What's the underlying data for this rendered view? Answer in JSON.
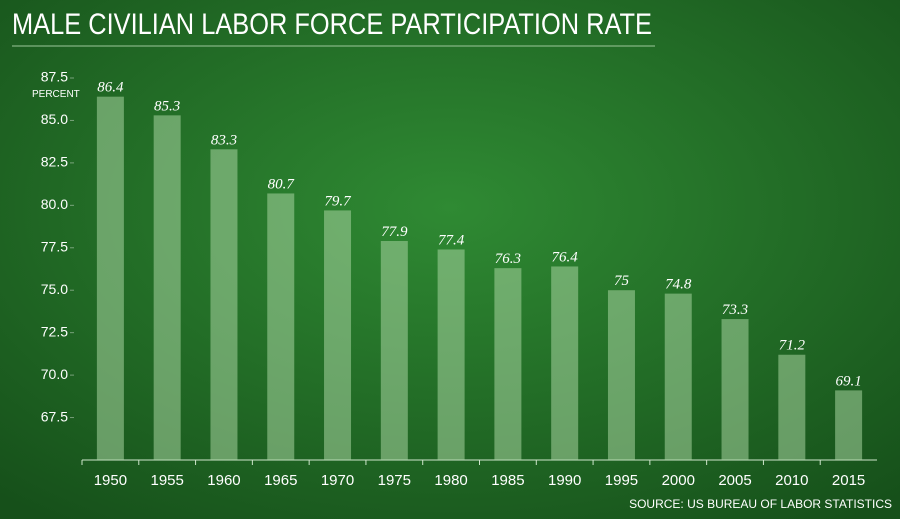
{
  "chart_data": {
    "type": "bar",
    "title": "MALE CIVILIAN LABOR FORCE PARTICIPATION RATE",
    "y_label": "PERCENT",
    "source": "SOURCE: US BUREAU OF LABOR STATISTICS",
    "categories": [
      "1950",
      "1955",
      "1960",
      "1965",
      "1970",
      "1975",
      "1980",
      "1985",
      "1990",
      "1995",
      "2000",
      "2005",
      "2010",
      "2015"
    ],
    "values": [
      86.4,
      85.3,
      83.3,
      80.7,
      79.7,
      77.9,
      77.4,
      76.3,
      76.4,
      75,
      74.8,
      73.3,
      71.2,
      69.1
    ],
    "color": "#a8d4a0",
    "ylim": [
      65,
      87.5
    ],
    "yticks": [
      87.5,
      {
        "value": 85,
        "label": "85.0"
      },
      82.5,
      {
        "value": 80,
        "label": "80.0"
      },
      77.5,
      {
        "value": 75,
        "label": "75.0"
      },
      72.5,
      {
        "value": 70,
        "label": "70.0"
      },
      67.5
    ],
    "grid": false
  }
}
